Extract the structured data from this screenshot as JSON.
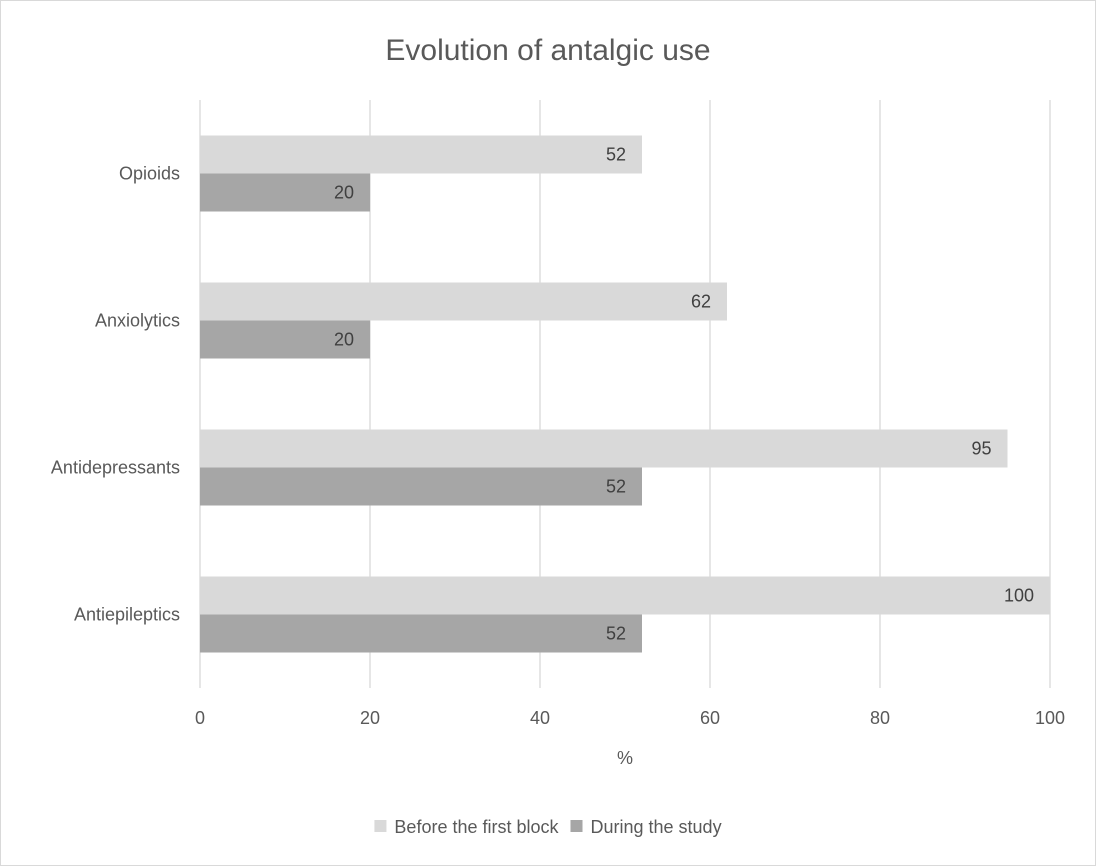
{
  "chart_data": {
    "type": "bar",
    "orientation": "horizontal",
    "title": "Evolution of antalgic use",
    "xlabel": "%",
    "ylabel": "",
    "categories": [
      "Antiepileptics",
      "Antidepressants",
      "Anxiolytics",
      "Opioids"
    ],
    "series": [
      {
        "name": "Before the first block",
        "values": [
          100,
          95,
          62,
          52
        ],
        "color": "#d9d9d9"
      },
      {
        "name": "During the study",
        "values": [
          52,
          52,
          20,
          20
        ],
        "color": "#a6a6a6"
      }
    ],
    "xlim": [
      0,
      100
    ],
    "xticks": [
      0,
      20,
      40,
      60,
      80,
      100
    ],
    "grid": true,
    "legend_position": "bottom",
    "data_labels": true
  }
}
